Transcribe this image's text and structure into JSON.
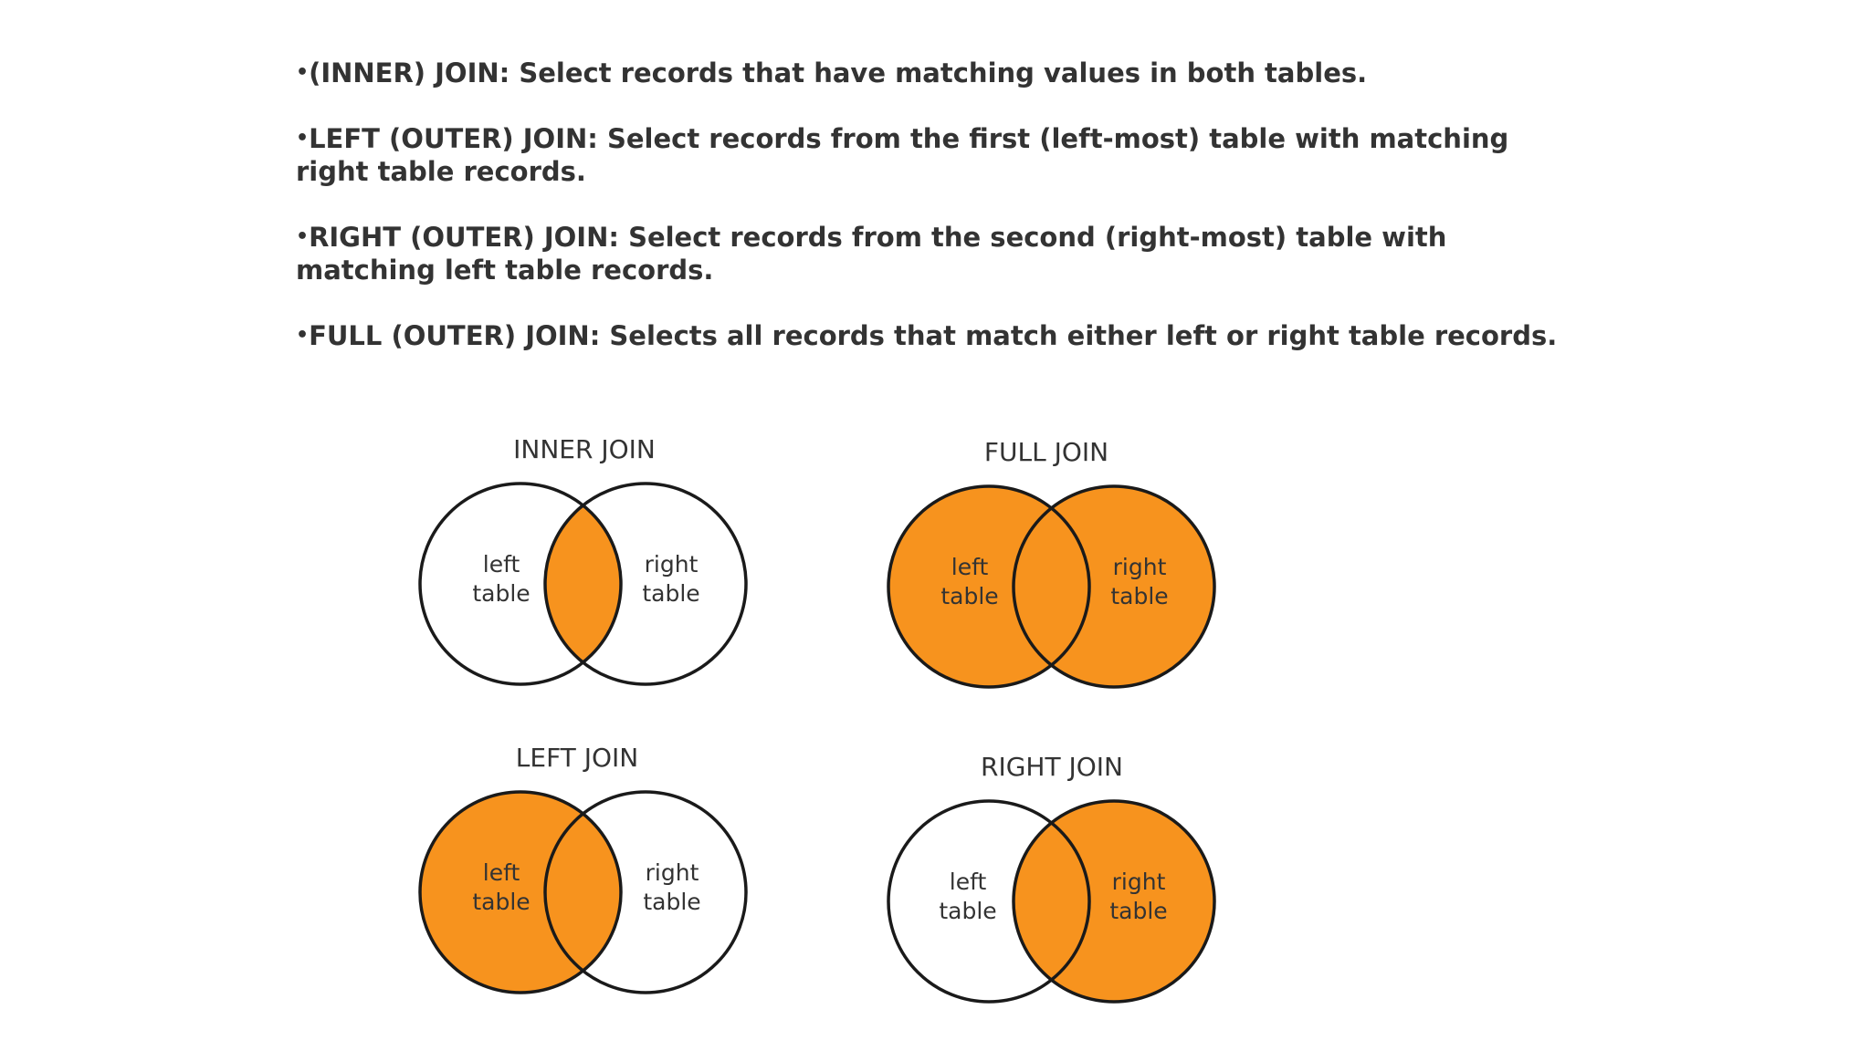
{
  "bullets": [
    {
      "term": "(INNER) JOIN:",
      "text": " Select records that have matching values in both tables."
    },
    {
      "term": "LEFT (OUTER) JOIN:",
      "text": " Select records from the first (left-most) table with matching right table records."
    },
    {
      "term": "RIGHT (OUTER) JOIN:",
      "text": " Select records from the second (right-most) table with matching left table records."
    },
    {
      "term": "FULL (OUTER) JOIN:",
      "text": " Selects all records that match either left or right table records."
    }
  ],
  "bullet_symbol": "•",
  "colors": {
    "fill": "#F7931E",
    "outline": "#1a1a1a",
    "text": "#333333"
  },
  "diagrams": {
    "inner": {
      "title": "INNER JOIN",
      "left_label": [
        "left",
        "table"
      ],
      "right_label": [
        "right",
        "table"
      ]
    },
    "full": {
      "title": "FULL JOIN",
      "left_label": [
        "left",
        "table"
      ],
      "right_label": [
        "right",
        "table"
      ]
    },
    "left": {
      "title": "LEFT JOIN",
      "left_label": [
        "left",
        "table"
      ],
      "right_label": [
        "right",
        "table"
      ]
    },
    "right": {
      "title": "RIGHT JOIN",
      "left_label": [
        "left",
        "table"
      ],
      "right_label": [
        "right",
        "table"
      ]
    }
  }
}
